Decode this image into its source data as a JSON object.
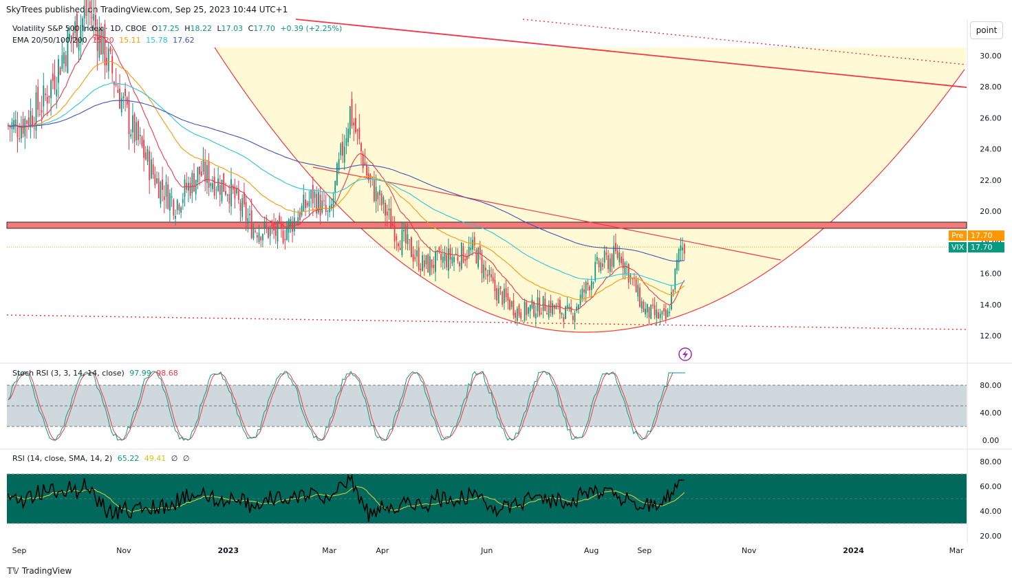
{
  "header": {
    "published": "SkyTrees published on TradingView.com, Sep 25, 2023 10:44 UTC+1"
  },
  "main_pane": {
    "title": "Volatility S&P 500 Index · 1D, CBOE",
    "ohlc": {
      "o_label": "O",
      "o": "17.25",
      "h_label": "H",
      "h": "18.22",
      "l_label": "L",
      "l": "17.03",
      "c_label": "C",
      "c": "17.70",
      "chg": "+0.39 (+2.25%)"
    },
    "ema_label": "EMA 20/50/100/200",
    "ema_values": [
      "15.20",
      "15.11",
      "15.78",
      "17.62"
    ],
    "colors": {
      "ema20": "#f23645",
      "ema50": "#ff9800",
      "ema100": "#26c6da",
      "ema200": "#3f51b5",
      "up": "#089981",
      "down": "#f23645"
    },
    "tags": {
      "pre_label": "Pre",
      "pre_value": "17.70",
      "vix_label": "VIX",
      "vix_value": "17.70"
    },
    "point_button": "point"
  },
  "stoch_pane": {
    "label": "Stoch RSI (3, 3, 14, 14, close)",
    "k": "97.99",
    "d": "98.68"
  },
  "rsi_pane": {
    "label": "RSI (14, close, SMA, 14, 2)",
    "rsi": "65.22",
    "sma": "49.41",
    "extra1": "∅",
    "extra2": "∅"
  },
  "footer": {
    "brand": "TradingView"
  },
  "chart_data": [
    {
      "type": "candlestick",
      "title": "Volatility S&P 500 Index · 1D, CBOE",
      "ylim": [
        11,
        31
      ],
      "y_ticks": [
        "30.00",
        "28.00",
        "26.00",
        "24.00",
        "22.00",
        "20.00",
        "18.00",
        "16.00",
        "14.00",
        "12.00"
      ],
      "x_ticks": [
        "Sep",
        "Nov",
        "2023",
        "Mar",
        "Apr",
        "Jun",
        "Aug",
        "Sep",
        "Nov",
        "2024",
        "Mar"
      ],
      "close_path": [
        [
          "2022-09-01",
          25.5
        ],
        [
          "2022-09-15",
          27.0
        ],
        [
          "2022-09-30",
          31.0
        ],
        [
          "2022-10-12",
          33.0
        ],
        [
          "2022-10-25",
          29.0
        ],
        [
          "2022-11-05",
          25.5
        ],
        [
          "2022-11-20",
          22.0
        ],
        [
          "2022-12-01",
          20.5
        ],
        [
          "2022-12-15",
          22.5
        ],
        [
          "2023-01-01",
          21.5
        ],
        [
          "2023-01-15",
          19.0
        ],
        [
          "2023-02-01",
          18.5
        ],
        [
          "2023-02-20",
          21.0
        ],
        [
          "2023-03-01",
          19.5
        ],
        [
          "2023-03-13",
          26.5
        ],
        [
          "2023-03-24",
          22.0
        ],
        [
          "2023-04-10",
          18.5
        ],
        [
          "2023-04-25",
          16.5
        ],
        [
          "2023-05-10",
          17.0
        ],
        [
          "2023-05-25",
          17.5
        ],
        [
          "2023-06-05",
          15.0
        ],
        [
          "2023-06-20",
          13.5
        ],
        [
          "2023-07-05",
          14.0
        ],
        [
          "2023-07-20",
          13.3
        ],
        [
          "2023-08-05",
          16.5
        ],
        [
          "2023-08-18",
          17.3
        ],
        [
          "2023-09-01",
          13.6
        ],
        [
          "2023-09-14",
          13.0
        ],
        [
          "2023-09-22",
          17.7
        ]
      ],
      "levels": {
        "resistance_zone": [
          18.9,
          19.3
        ],
        "support_dotted": 12.5,
        "last_price": 17.7
      },
      "ema_last": {
        "ema20": 15.2,
        "ema50": 15.11,
        "ema100": 15.78,
        "ema200": 17.62
      }
    },
    {
      "type": "line",
      "title": "Stoch RSI (3, 3, 14, 14, close)",
      "ylim": [
        0,
        100
      ],
      "y_ticks": [
        "80.00",
        "40.00",
        "0.00"
      ],
      "bands": [
        20,
        50,
        80
      ],
      "last": {
        "k": 97.99,
        "d": 98.68
      }
    },
    {
      "type": "line",
      "title": "RSI (14, close, SMA, 14, 2)",
      "ylim": [
        15,
        85
      ],
      "y_ticks": [
        "80.00",
        "60.00",
        "40.00",
        "20.00"
      ],
      "bands": [
        30,
        70
      ],
      "last": {
        "rsi": 65.22,
        "sma": 49.41
      }
    }
  ]
}
